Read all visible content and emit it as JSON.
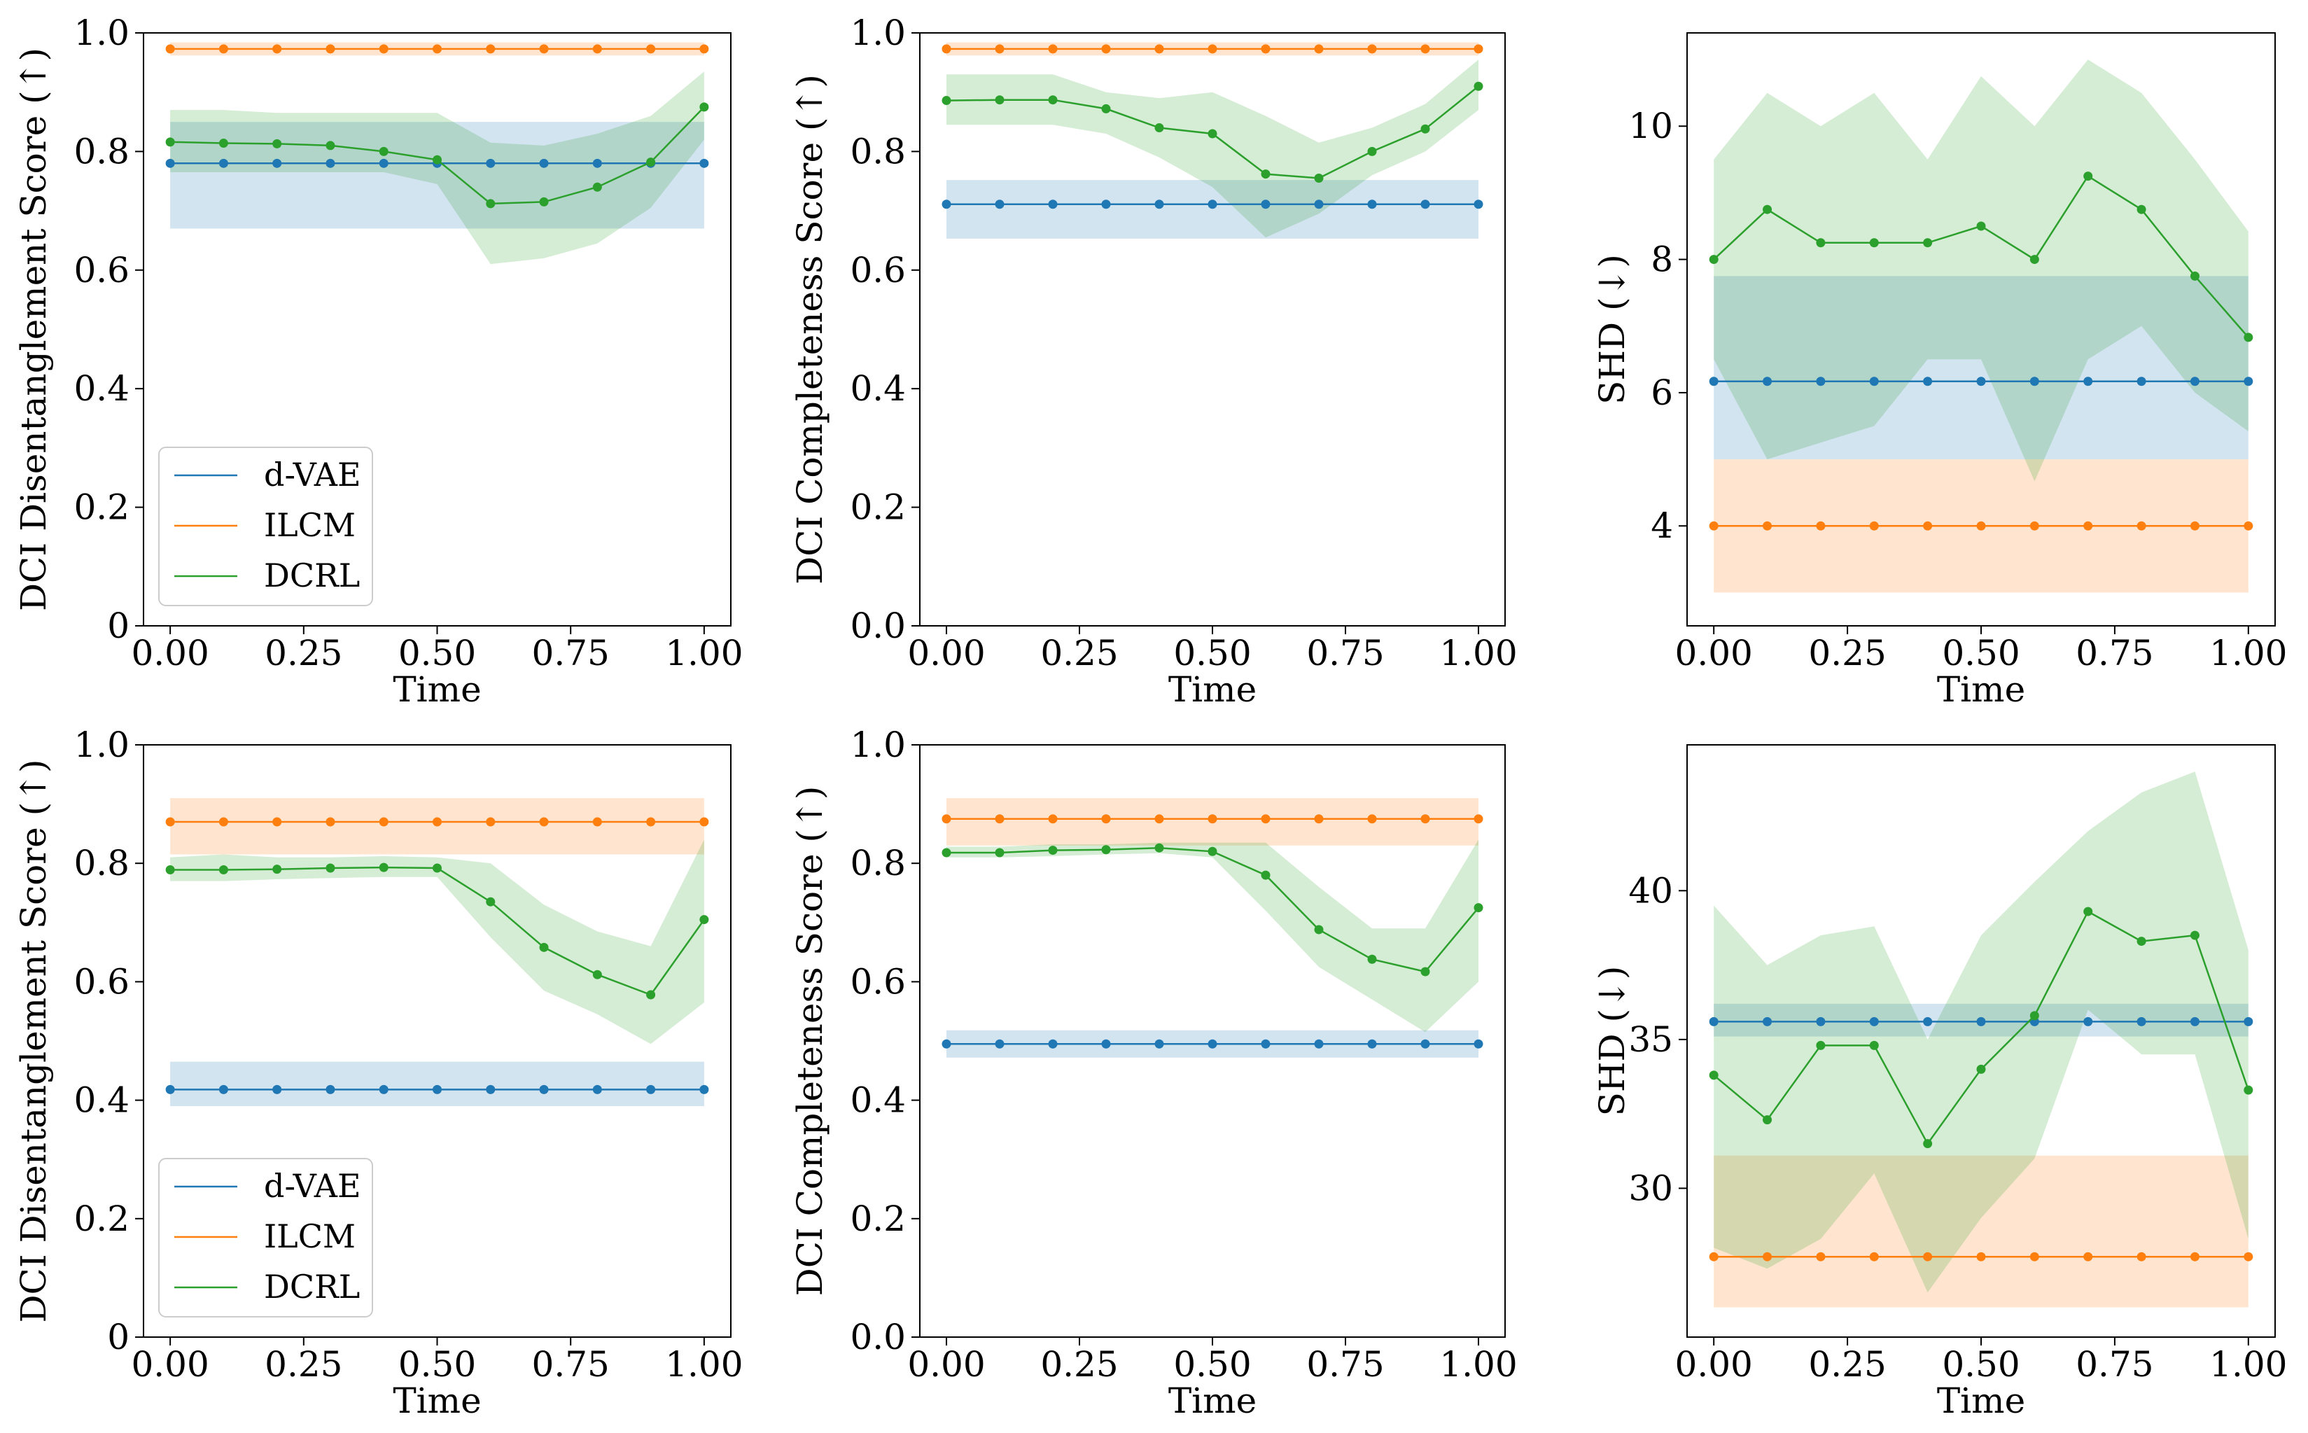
{
  "figure_colors": {
    "d-VAE": "#1f77b4",
    "ILCM": "#ff7f0e",
    "DCRL": "#2ca02c"
  },
  "chart_data": [
    {
      "type": "line",
      "xlabel": "Time",
      "ylabel": "DCI Disentanglement Score (↑)",
      "xlim": [
        -0.05,
        1.05
      ],
      "ylim": [
        0,
        1.0
      ],
      "xticks": [
        "0.00",
        "0.25",
        "0.50",
        "0.75",
        "1.00"
      ],
      "yticks": [
        "0",
        "0.2",
        "0.4",
        "0.6",
        "0.8",
        "1.0"
      ],
      "x": [
        0.0,
        0.1,
        0.2,
        0.3,
        0.4,
        0.5,
        0.6,
        0.7,
        0.8,
        0.9,
        1.0
      ],
      "legend": {
        "position": "lower-left",
        "entries": [
          "d-VAE",
          "ILCM",
          "DCRL"
        ]
      },
      "series": [
        {
          "name": "d-VAE",
          "values": [
            0.78,
            0.78,
            0.78,
            0.78,
            0.78,
            0.78,
            0.78,
            0.78,
            0.78,
            0.78,
            0.78
          ],
          "lower": [
            0.67,
            0.67,
            0.67,
            0.67,
            0.67,
            0.67,
            0.67,
            0.67,
            0.67,
            0.67,
            0.67
          ],
          "upper": [
            0.85,
            0.85,
            0.85,
            0.85,
            0.85,
            0.85,
            0.85,
            0.85,
            0.85,
            0.85,
            0.85
          ]
        },
        {
          "name": "ILCM",
          "values": [
            0.973,
            0.973,
            0.973,
            0.973,
            0.973,
            0.973,
            0.973,
            0.973,
            0.973,
            0.973,
            0.973
          ],
          "lower": [
            0.962,
            0.962,
            0.962,
            0.962,
            0.962,
            0.962,
            0.962,
            0.962,
            0.962,
            0.962,
            0.962
          ],
          "upper": [
            0.984,
            0.984,
            0.984,
            0.984,
            0.984,
            0.984,
            0.984,
            0.984,
            0.984,
            0.984,
            0.984
          ]
        },
        {
          "name": "DCRL",
          "values": [
            0.816,
            0.814,
            0.813,
            0.81,
            0.8,
            0.786,
            0.712,
            0.715,
            0.74,
            0.782,
            0.875
          ],
          "lower": [
            0.765,
            0.765,
            0.765,
            0.765,
            0.765,
            0.745,
            0.61,
            0.62,
            0.645,
            0.705,
            0.82
          ],
          "upper": [
            0.87,
            0.87,
            0.865,
            0.865,
            0.865,
            0.865,
            0.815,
            0.81,
            0.83,
            0.86,
            0.935
          ]
        }
      ]
    },
    {
      "type": "line",
      "xlabel": "Time",
      "ylabel": "DCI Completeness Score (↑)",
      "xlim": [
        -0.05,
        1.05
      ],
      "ylim": [
        0,
        1.0
      ],
      "xticks": [
        "0.00",
        "0.25",
        "0.50",
        "0.75",
        "1.00"
      ],
      "yticks": [
        "0.0",
        "0.2",
        "0.4",
        "0.6",
        "0.8",
        "1.0"
      ],
      "x": [
        0.0,
        0.1,
        0.2,
        0.3,
        0.4,
        0.5,
        0.6,
        0.7,
        0.8,
        0.9,
        1.0
      ],
      "series": [
        {
          "name": "d-VAE",
          "values": [
            0.711,
            0.711,
            0.711,
            0.711,
            0.711,
            0.711,
            0.711,
            0.711,
            0.711,
            0.711,
            0.711
          ],
          "lower": [
            0.653,
            0.653,
            0.653,
            0.653,
            0.653,
            0.653,
            0.653,
            0.653,
            0.653,
            0.653,
            0.653
          ],
          "upper": [
            0.752,
            0.752,
            0.752,
            0.752,
            0.752,
            0.752,
            0.752,
            0.752,
            0.752,
            0.752,
            0.752
          ]
        },
        {
          "name": "ILCM",
          "values": [
            0.973,
            0.973,
            0.973,
            0.973,
            0.973,
            0.973,
            0.973,
            0.973,
            0.973,
            0.973,
            0.973
          ],
          "lower": [
            0.962,
            0.962,
            0.962,
            0.962,
            0.962,
            0.962,
            0.962,
            0.962,
            0.962,
            0.962,
            0.962
          ],
          "upper": [
            0.984,
            0.984,
            0.984,
            0.984,
            0.984,
            0.984,
            0.984,
            0.984,
            0.984,
            0.984,
            0.984
          ]
        },
        {
          "name": "DCRL",
          "values": [
            0.886,
            0.887,
            0.887,
            0.872,
            0.84,
            0.83,
            0.762,
            0.755,
            0.8,
            0.838,
            0.91
          ],
          "lower": [
            0.845,
            0.845,
            0.845,
            0.83,
            0.79,
            0.74,
            0.655,
            0.695,
            0.76,
            0.8,
            0.87
          ],
          "upper": [
            0.93,
            0.93,
            0.93,
            0.9,
            0.89,
            0.9,
            0.86,
            0.815,
            0.84,
            0.88,
            0.955
          ]
        }
      ]
    },
    {
      "type": "line",
      "xlabel": "Time",
      "ylabel": "SHD (↓)",
      "xlim": [
        -0.05,
        1.05
      ],
      "ylim": [
        2.5,
        11.4
      ],
      "xticks": [
        "0.00",
        "0.25",
        "0.50",
        "0.75",
        "1.00"
      ],
      "yticks": [
        "4",
        "6",
        "8",
        "10"
      ],
      "x": [
        0.0,
        0.1,
        0.2,
        0.3,
        0.4,
        0.5,
        0.6,
        0.7,
        0.8,
        0.9,
        1.0
      ],
      "series": [
        {
          "name": "d-VAE",
          "values": [
            6.17,
            6.17,
            6.17,
            6.17,
            6.17,
            6.17,
            6.17,
            6.17,
            6.17,
            6.17,
            6.17
          ],
          "lower": [
            5.0,
            5.0,
            5.0,
            5.0,
            5.0,
            5.0,
            5.0,
            5.0,
            5.0,
            5.0,
            5.0
          ],
          "upper": [
            7.75,
            7.75,
            7.75,
            7.75,
            7.75,
            7.75,
            7.75,
            7.75,
            7.75,
            7.75,
            7.75
          ]
        },
        {
          "name": "ILCM",
          "values": [
            4.0,
            4.0,
            4.0,
            4.0,
            4.0,
            4.0,
            4.0,
            4.0,
            4.0,
            4.0,
            4.0
          ],
          "lower": [
            3.0,
            3.0,
            3.0,
            3.0,
            3.0,
            3.0,
            3.0,
            3.0,
            3.0,
            3.0,
            3.0
          ],
          "upper": [
            5.0,
            5.0,
            5.0,
            5.0,
            5.0,
            5.0,
            5.0,
            5.0,
            5.0,
            5.0,
            5.0
          ]
        },
        {
          "name": "DCRL",
          "values": [
            8.0,
            8.75,
            8.25,
            8.25,
            8.25,
            8.5,
            8.0,
            9.25,
            8.75,
            7.75,
            6.83
          ],
          "lower": [
            6.5,
            5.0,
            5.25,
            5.5,
            6.5,
            6.5,
            4.67,
            6.5,
            7.0,
            6.0,
            5.42
          ],
          "upper": [
            9.5,
            10.5,
            10.0,
            10.5,
            9.5,
            10.75,
            10.0,
            11.0,
            10.5,
            9.5,
            8.42
          ]
        }
      ]
    },
    {
      "type": "line",
      "xlabel": "Time",
      "ylabel": "DCI Disentanglement Score (↑)",
      "xlim": [
        -0.05,
        1.05
      ],
      "ylim": [
        0,
        1.0
      ],
      "xticks": [
        "0.00",
        "0.25",
        "0.50",
        "0.75",
        "1.00"
      ],
      "yticks": [
        "0",
        "0.2",
        "0.4",
        "0.6",
        "0.8",
        "1.0"
      ],
      "x": [
        0.0,
        0.1,
        0.2,
        0.3,
        0.4,
        0.5,
        0.6,
        0.7,
        0.8,
        0.9,
        1.0
      ],
      "legend": {
        "position": "lower-left",
        "entries": [
          "d-VAE",
          "ILCM",
          "DCRL"
        ]
      },
      "series": [
        {
          "name": "d-VAE",
          "values": [
            0.418,
            0.418,
            0.418,
            0.418,
            0.418,
            0.418,
            0.418,
            0.418,
            0.418,
            0.418,
            0.418
          ],
          "lower": [
            0.39,
            0.39,
            0.39,
            0.39,
            0.39,
            0.39,
            0.39,
            0.39,
            0.39,
            0.39,
            0.39
          ],
          "upper": [
            0.465,
            0.465,
            0.465,
            0.465,
            0.465,
            0.465,
            0.465,
            0.465,
            0.465,
            0.465,
            0.465
          ]
        },
        {
          "name": "ILCM",
          "values": [
            0.87,
            0.87,
            0.87,
            0.87,
            0.87,
            0.87,
            0.87,
            0.87,
            0.87,
            0.87,
            0.87
          ],
          "lower": [
            0.815,
            0.815,
            0.815,
            0.815,
            0.815,
            0.815,
            0.815,
            0.815,
            0.815,
            0.815,
            0.815
          ],
          "upper": [
            0.91,
            0.91,
            0.91,
            0.91,
            0.91,
            0.91,
            0.91,
            0.91,
            0.91,
            0.91,
            0.91
          ]
        },
        {
          "name": "DCRL",
          "values": [
            0.789,
            0.789,
            0.79,
            0.792,
            0.793,
            0.792,
            0.735,
            0.658,
            0.612,
            0.578,
            0.705
          ],
          "lower": [
            0.77,
            0.77,
            0.773,
            0.775,
            0.777,
            0.777,
            0.675,
            0.585,
            0.545,
            0.495,
            0.565
          ],
          "upper": [
            0.81,
            0.815,
            0.81,
            0.81,
            0.812,
            0.81,
            0.8,
            0.73,
            0.685,
            0.66,
            0.84
          ]
        }
      ]
    },
    {
      "type": "line",
      "xlabel": "Time",
      "ylabel": "DCI Completeness Score (↑)",
      "xlim": [
        -0.05,
        1.05
      ],
      "ylim": [
        0,
        1.0
      ],
      "xticks": [
        "0.00",
        "0.25",
        "0.50",
        "0.75",
        "1.00"
      ],
      "yticks": [
        "0.0",
        "0.2",
        "0.4",
        "0.6",
        "0.8",
        "1.0"
      ],
      "x": [
        0.0,
        0.1,
        0.2,
        0.3,
        0.4,
        0.5,
        0.6,
        0.7,
        0.8,
        0.9,
        1.0
      ],
      "series": [
        {
          "name": "d-VAE",
          "values": [
            0.495,
            0.495,
            0.495,
            0.495,
            0.495,
            0.495,
            0.495,
            0.495,
            0.495,
            0.495,
            0.495
          ],
          "lower": [
            0.472,
            0.472,
            0.472,
            0.472,
            0.472,
            0.472,
            0.472,
            0.472,
            0.472,
            0.472,
            0.472
          ],
          "upper": [
            0.518,
            0.518,
            0.518,
            0.518,
            0.518,
            0.518,
            0.518,
            0.518,
            0.518,
            0.518,
            0.518
          ]
        },
        {
          "name": "ILCM",
          "values": [
            0.875,
            0.875,
            0.875,
            0.875,
            0.875,
            0.875,
            0.875,
            0.875,
            0.875,
            0.875,
            0.875
          ],
          "lower": [
            0.83,
            0.83,
            0.83,
            0.83,
            0.83,
            0.83,
            0.83,
            0.83,
            0.83,
            0.83,
            0.83
          ],
          "upper": [
            0.91,
            0.91,
            0.91,
            0.91,
            0.91,
            0.91,
            0.91,
            0.91,
            0.91,
            0.91,
            0.91
          ]
        },
        {
          "name": "DCRL",
          "values": [
            0.818,
            0.818,
            0.822,
            0.823,
            0.826,
            0.82,
            0.78,
            0.688,
            0.638,
            0.617,
            0.725
          ],
          "lower": [
            0.81,
            0.81,
            0.812,
            0.815,
            0.817,
            0.81,
            0.72,
            0.625,
            0.57,
            0.515,
            0.6
          ],
          "upper": [
            0.828,
            0.828,
            0.832,
            0.832,
            0.835,
            0.835,
            0.835,
            0.76,
            0.69,
            0.69,
            0.84
          ]
        }
      ]
    },
    {
      "type": "line",
      "xlabel": "Time",
      "ylabel": "SHD (↓)",
      "xlim": [
        -0.05,
        1.05
      ],
      "ylim": [
        25.0,
        44.9
      ],
      "xticks": [
        "0.00",
        "0.25",
        "0.50",
        "0.75",
        "1.00"
      ],
      "yticks": [
        "30",
        "35",
        "40"
      ],
      "x": [
        0.0,
        0.1,
        0.2,
        0.3,
        0.4,
        0.5,
        0.6,
        0.7,
        0.8,
        0.9,
        1.0
      ],
      "series": [
        {
          "name": "d-VAE",
          "values": [
            35.6,
            35.6,
            35.6,
            35.6,
            35.6,
            35.6,
            35.6,
            35.6,
            35.6,
            35.6,
            35.6
          ],
          "lower": [
            35.1,
            35.1,
            35.1,
            35.1,
            35.1,
            35.1,
            35.1,
            35.1,
            35.1,
            35.1,
            35.1
          ],
          "upper": [
            36.2,
            36.2,
            36.2,
            36.2,
            36.2,
            36.2,
            36.2,
            36.2,
            36.2,
            36.2,
            36.2
          ]
        },
        {
          "name": "ILCM",
          "values": [
            27.7,
            27.7,
            27.7,
            27.7,
            27.7,
            27.7,
            27.7,
            27.7,
            27.7,
            27.7,
            27.7
          ],
          "lower": [
            26.0,
            26.0,
            26.0,
            26.0,
            26.0,
            26.0,
            26.0,
            26.0,
            26.0,
            26.0,
            26.0
          ],
          "upper": [
            31.1,
            31.1,
            31.1,
            31.1,
            31.1,
            31.1,
            31.1,
            31.1,
            31.1,
            31.1,
            31.1
          ]
        },
        {
          "name": "DCRL",
          "values": [
            33.8,
            32.3,
            34.8,
            34.8,
            31.5,
            34.0,
            35.8,
            39.3,
            38.3,
            38.5,
            33.3
          ],
          "lower": [
            28.0,
            27.3,
            28.3,
            30.5,
            26.5,
            29.0,
            31.0,
            36.0,
            34.5,
            34.5,
            28.3
          ],
          "upper": [
            39.5,
            37.5,
            38.5,
            38.8,
            35.0,
            38.5,
            40.3,
            42.0,
            43.3,
            44.0,
            38.0
          ]
        }
      ]
    }
  ]
}
